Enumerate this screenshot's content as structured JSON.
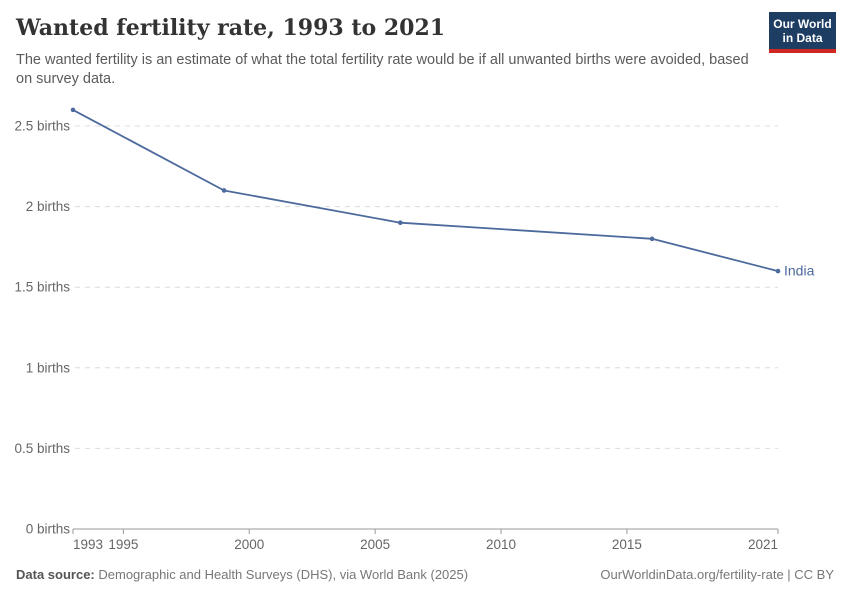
{
  "header": {
    "title": "Wanted fertility rate, 1993 to 2021",
    "subtitle": "The wanted fertility is an estimate of what the total fertility rate would be if all unwanted births were avoided, based on survey data.",
    "logo": {
      "line1": "Our World",
      "line2": "in Data"
    }
  },
  "chart_data": {
    "type": "line",
    "title": "Wanted fertility rate, 1993 to 2021",
    "xlabel": "",
    "ylabel": "",
    "x": [
      1993,
      1999,
      2006,
      2016,
      2021
    ],
    "series": [
      {
        "name": "India",
        "color": "#4c6a9c",
        "values": [
          2.6,
          2.1,
          1.9,
          1.8,
          1.6
        ]
      }
    ],
    "xticks": [
      1993,
      1995,
      2000,
      2005,
      2010,
      2015,
      2021
    ],
    "yticks": [
      {
        "value": 0,
        "label": "0 births"
      },
      {
        "value": 0.5,
        "label": "0.5 births"
      },
      {
        "value": 1,
        "label": "1 births"
      },
      {
        "value": 1.5,
        "label": "1.5 births"
      },
      {
        "value": 2,
        "label": "2 births"
      },
      {
        "value": 2.5,
        "label": "2.5 births"
      }
    ],
    "xlim": [
      1993,
      2021
    ],
    "ylim": [
      0,
      2.7
    ],
    "grid": "horizontal-dashed",
    "legend": "inline-end-label",
    "entity_label": "India"
  },
  "footer": {
    "datasource_label": "Data source:",
    "datasource_text": "Demographic and Health Surveys (DHS), via World Bank (2025)",
    "credit": "OurWorldinData.org/fertility-rate | CC BY"
  },
  "colors": {
    "line": "#4c6a9c",
    "grid": "#dcdcdc",
    "axis": "#9a9a9a",
    "tick_text": "#666666",
    "title_text": "#333333",
    "subtitle_text": "#5b5b5b",
    "footer_text": "#777777",
    "logo_bg": "#1d3d63",
    "logo_accent": "#cf2722"
  }
}
